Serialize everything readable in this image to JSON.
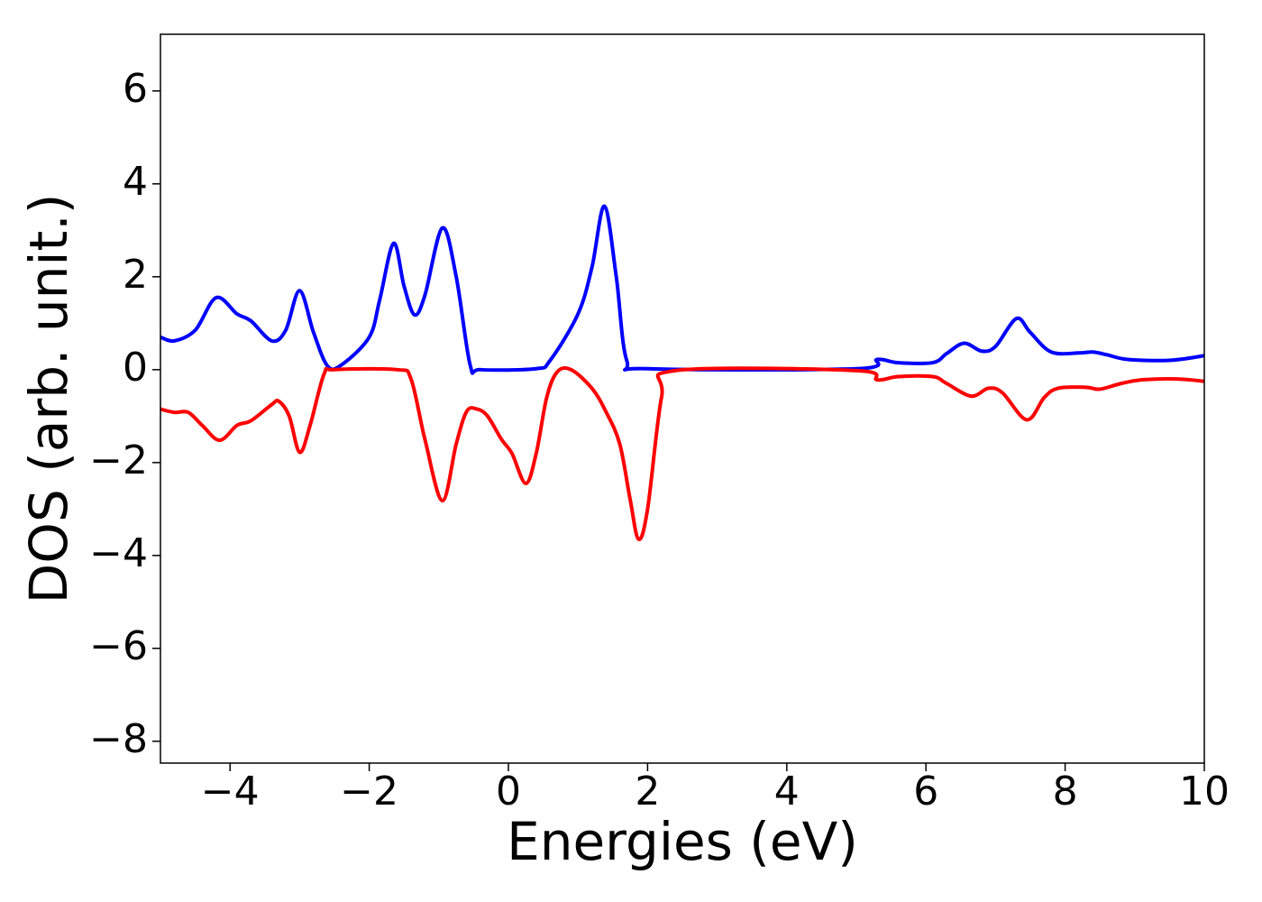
{
  "chart_data": {
    "type": "line",
    "xlabel": "Energies (eV)",
    "ylabel": "DOS (arb. unit.)",
    "xlim": [
      -5,
      10
    ],
    "ylim": [
      -8.47,
      7.22
    ],
    "xticks": [
      {
        "value": -4,
        "label": "−4"
      },
      {
        "value": -2,
        "label": "−2"
      },
      0,
      2,
      4,
      6,
      8,
      10
    ],
    "yticks": [
      {
        "value": -8,
        "label": "−8"
      },
      {
        "value": -6,
        "label": "−6"
      },
      {
        "value": -4,
        "label": "−4"
      },
      {
        "value": -2,
        "label": "−2"
      },
      0,
      2,
      4,
      6
    ],
    "grid": false,
    "series": [
      {
        "color": "#0000ff",
        "x": [
          -5,
          -4.8,
          -4.5,
          -4.2,
          -3.9,
          -3.7,
          -3.4,
          -3.2,
          -3.0,
          -2.8,
          -2.6,
          -2.4,
          -2.0,
          -1.85,
          -1.65,
          -1.5,
          -1.35,
          -1.2,
          -0.95,
          -0.75,
          -0.55,
          -0.4,
          0.4,
          0.6,
          1.0,
          1.2,
          1.38,
          1.55,
          1.7,
          2.0,
          5.0,
          5.3,
          5.6,
          6.1,
          6.3,
          6.55,
          6.8,
          7.0,
          7.3,
          7.5,
          7.8,
          8.2,
          8.4,
          8.6,
          8.9,
          9.5,
          10
        ],
        "values": [
          0.7,
          0.62,
          0.85,
          1.55,
          1.2,
          1.05,
          0.62,
          0.85,
          1.7,
          0.8,
          0.08,
          0.1,
          0.7,
          1.5,
          2.72,
          1.8,
          1.18,
          1.6,
          3.05,
          2.0,
          0.1,
          0.0,
          0.02,
          0.2,
          1.2,
          2.2,
          3.52,
          2.0,
          0.2,
          0.02,
          0.02,
          0.22,
          0.15,
          0.15,
          0.35,
          0.57,
          0.4,
          0.5,
          1.1,
          0.8,
          0.38,
          0.36,
          0.38,
          0.32,
          0.22,
          0.2,
          0.3
        ]
      },
      {
        "color": "#ff0000",
        "x": [
          -5,
          -4.8,
          -4.6,
          -4.4,
          -4.15,
          -3.9,
          -3.7,
          -3.4,
          -3.3,
          -3.15,
          -3.0,
          -2.85,
          -2.65,
          -2.5,
          -1.6,
          -1.4,
          -1.2,
          -0.95,
          -0.75,
          -0.6,
          -0.45,
          -0.3,
          -0.1,
          0.05,
          0.25,
          0.4,
          0.55,
          0.7,
          0.9,
          1.2,
          1.4,
          1.6,
          1.75,
          1.87,
          2.0,
          2.2,
          2.4,
          5.0,
          5.3,
          5.6,
          6.1,
          6.3,
          6.65,
          6.9,
          7.1,
          7.45,
          7.7,
          7.9,
          8.3,
          8.5,
          8.8,
          9.1,
          9.6,
          10
        ],
        "values": [
          -0.85,
          -0.92,
          -0.92,
          -1.2,
          -1.52,
          -1.2,
          -1.1,
          -0.75,
          -0.68,
          -1.0,
          -1.78,
          -1.2,
          -0.1,
          0,
          0,
          -0.2,
          -1.5,
          -2.82,
          -1.6,
          -0.9,
          -0.85,
          -1.0,
          -1.5,
          -1.8,
          -2.45,
          -1.8,
          -0.6,
          -0.05,
          0,
          -0.4,
          -0.9,
          -1.6,
          -2.8,
          -3.65,
          -3.0,
          -0.6,
          -0.02,
          -0.02,
          -0.22,
          -0.15,
          -0.15,
          -0.3,
          -0.57,
          -0.4,
          -0.5,
          -1.08,
          -0.6,
          -0.4,
          -0.38,
          -0.42,
          -0.3,
          -0.22,
          -0.2,
          -0.25
        ]
      }
    ]
  }
}
